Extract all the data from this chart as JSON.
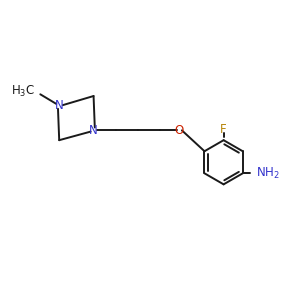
{
  "bg_color": "#ffffff",
  "bond_color": "#1a1a1a",
  "N_color": "#3333cc",
  "O_color": "#cc2200",
  "F_color": "#b8860b",
  "NH2_color": "#3333cc",
  "line_width": 1.4,
  "font_size": 8.5,
  "fig_size": [
    3.0,
    3.0
  ],
  "dpi": 100,
  "xlim": [
    0,
    12
  ],
  "ylim": [
    0,
    10
  ]
}
